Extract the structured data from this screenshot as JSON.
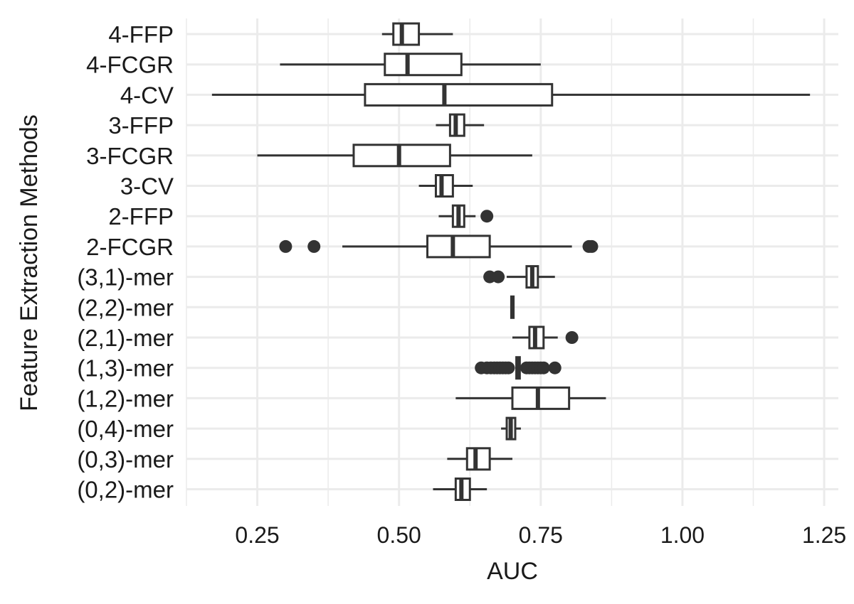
{
  "chart_data": {
    "type": "boxplot",
    "orientation": "horizontal",
    "xlabel": "AUC",
    "ylabel": "Feature Extraction Methods",
    "xlim": [
      0.125,
      1.275
    ],
    "xticks": [
      0.25,
      0.5,
      0.75,
      1.0,
      1.25
    ],
    "xtick_labels": [
      "0.25",
      "0.50",
      "0.75",
      "1.00",
      "1.25"
    ],
    "grid": true,
    "box_color": "#333333",
    "grid_color": "#ebebeb",
    "categories": [
      "4-FFP",
      "4-FCGR",
      "4-CV",
      "3-FFP",
      "3-FCGR",
      "3-CV",
      "2-FFP",
      "2-FCGR",
      "(3,1)-mer",
      "(2,2)-mer",
      "(2,1)-mer",
      "(1,3)-mer",
      "(1,2)-mer",
      "(0,4)-mer",
      "(0,3)-mer",
      "(0,2)-mer"
    ],
    "boxes": [
      {
        "name": "4-FFP",
        "min": 0.47,
        "q1": 0.49,
        "median": 0.505,
        "q3": 0.535,
        "max": 0.595,
        "outliers": []
      },
      {
        "name": "4-FCGR",
        "min": 0.29,
        "q1": 0.475,
        "median": 0.515,
        "q3": 0.61,
        "max": 0.75,
        "outliers": []
      },
      {
        "name": "4-CV",
        "min": 0.17,
        "q1": 0.44,
        "median": 0.58,
        "q3": 0.77,
        "max": 1.225,
        "outliers": []
      },
      {
        "name": "3-FFP",
        "min": 0.565,
        "q1": 0.59,
        "median": 0.6,
        "q3": 0.615,
        "max": 0.65,
        "outliers": []
      },
      {
        "name": "3-FCGR",
        "min": 0.25,
        "q1": 0.42,
        "median": 0.5,
        "q3": 0.59,
        "max": 0.735,
        "outliers": []
      },
      {
        "name": "3-CV",
        "min": 0.535,
        "q1": 0.565,
        "median": 0.575,
        "q3": 0.595,
        "max": 0.63,
        "outliers": []
      },
      {
        "name": "2-FFP",
        "min": 0.57,
        "q1": 0.595,
        "median": 0.605,
        "q3": 0.615,
        "max": 0.635,
        "outliers": [
          0.655
        ]
      },
      {
        "name": "2-FCGR",
        "min": 0.4,
        "q1": 0.55,
        "median": 0.595,
        "q3": 0.66,
        "max": 0.805,
        "outliers": [
          0.3,
          0.35,
          0.835,
          0.84
        ]
      },
      {
        "name": "(3,1)-mer",
        "min": 0.69,
        "q1": 0.725,
        "median": 0.735,
        "q3": 0.745,
        "max": 0.775,
        "outliers": [
          0.66,
          0.675
        ]
      },
      {
        "name": "(2,2)-mer",
        "min": 0.697,
        "q1": 0.698,
        "median": 0.7,
        "q3": 0.702,
        "max": 0.703,
        "outliers": []
      },
      {
        "name": "(2,1)-mer",
        "min": 0.7,
        "q1": 0.73,
        "median": 0.74,
        "q3": 0.755,
        "max": 0.78,
        "outliers": [
          0.805
        ]
      },
      {
        "name": "(1,3)-mer",
        "min": 0.705,
        "q1": 0.707,
        "median": 0.71,
        "q3": 0.713,
        "max": 0.716,
        "outliers": [
          0.645,
          0.655,
          0.662,
          0.668,
          0.673,
          0.678,
          0.683,
          0.688,
          0.693,
          0.725,
          0.73,
          0.735,
          0.74,
          0.745,
          0.75,
          0.755,
          0.775
        ]
      },
      {
        "name": "(1,2)-mer",
        "min": 0.6,
        "q1": 0.7,
        "median": 0.745,
        "q3": 0.8,
        "max": 0.865,
        "outliers": []
      },
      {
        "name": "(0,4)-mer",
        "min": 0.68,
        "q1": 0.69,
        "median": 0.697,
        "q3": 0.705,
        "max": 0.715,
        "outliers": []
      },
      {
        "name": "(0,3)-mer",
        "min": 0.585,
        "q1": 0.62,
        "median": 0.635,
        "q3": 0.66,
        "max": 0.7,
        "outliers": []
      },
      {
        "name": "(0,2)-mer",
        "min": 0.56,
        "q1": 0.6,
        "median": 0.61,
        "q3": 0.625,
        "max": 0.655,
        "outliers": []
      }
    ]
  }
}
